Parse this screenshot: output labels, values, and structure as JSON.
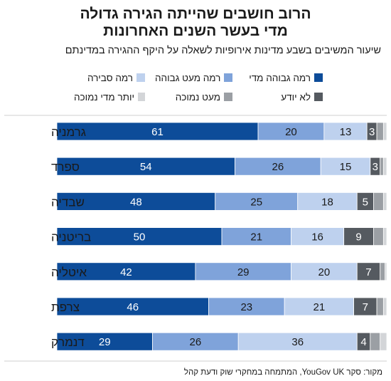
{
  "title_line1": "הרוב חושבים שהייתה הגירה גדולה",
  "title_line2": "מדי בעשר השנים האחרונות",
  "subtitle": "שיעור המשיבים בשבע מדינות אירופיות לשאלה על היקף ההגירה במדינתם",
  "source": "מקור: סקר YouGov UK, המתמחה במחקרי שוק ודעת קהל",
  "legend": [
    {
      "label": "רמה גבוהה מדי",
      "color": "#0d4c99"
    },
    {
      "label": "רמה מעט גבוהה",
      "color": "#7fa3da"
    },
    {
      "label": "רמה סבירה",
      "color": "#bed1ee"
    },
    {
      "label": "לא יודע",
      "color": "#555a60"
    },
    {
      "label": "מעט נמוכה",
      "color": "#9b9fa4"
    },
    {
      "label": "יותר מדי נמוכה",
      "color": "#d3d5d8"
    }
  ],
  "chart_data": {
    "type": "bar",
    "orientation": "horizontal-stacked-100",
    "categories": [
      "גרמניה",
      "ספרד",
      "שבדיה",
      "בריטניה",
      "איטליה",
      "צרפת",
      "דנמרק"
    ],
    "series": [
      {
        "name": "רמה גבוהה מדי",
        "color": "#0d4c99",
        "values": [
          61,
          54,
          48,
          50,
          42,
          46,
          29
        ]
      },
      {
        "name": "רמה מעט גבוהה",
        "color": "#7fa3da",
        "values": [
          20,
          26,
          25,
          21,
          29,
          23,
          26
        ]
      },
      {
        "name": "רמה סבירה",
        "color": "#bed1ee",
        "values": [
          13,
          15,
          18,
          16,
          20,
          21,
          36
        ]
      },
      {
        "name": "לא יודע",
        "color": "#555a60",
        "values": [
          3,
          3,
          5,
          9,
          7,
          7,
          4
        ]
      },
      {
        "name": "מעט נמוכה",
        "color": "#9b9fa4",
        "values": [
          2,
          1,
          3,
          3,
          1.5,
          2,
          3
        ]
      },
      {
        "name": "יותר מדי נמוכה",
        "color": "#d3d5d8",
        "values": [
          1,
          1,
          1,
          1,
          0.5,
          1,
          2
        ]
      }
    ],
    "data_labels": [
      [
        "61",
        "20",
        "13",
        "3",
        "",
        ""
      ],
      [
        "54",
        "26",
        "15",
        "3",
        "",
        ""
      ],
      [
        "48",
        "25",
        "18",
        "5",
        "",
        ""
      ],
      [
        "50",
        "21",
        "16",
        "9",
        "",
        ""
      ],
      [
        "42",
        "29",
        "20",
        "7",
        "",
        ""
      ],
      [
        "46",
        "23",
        "21",
        "7",
        "",
        ""
      ],
      [
        "29",
        "26",
        "36",
        "4",
        "",
        ""
      ]
    ]
  }
}
